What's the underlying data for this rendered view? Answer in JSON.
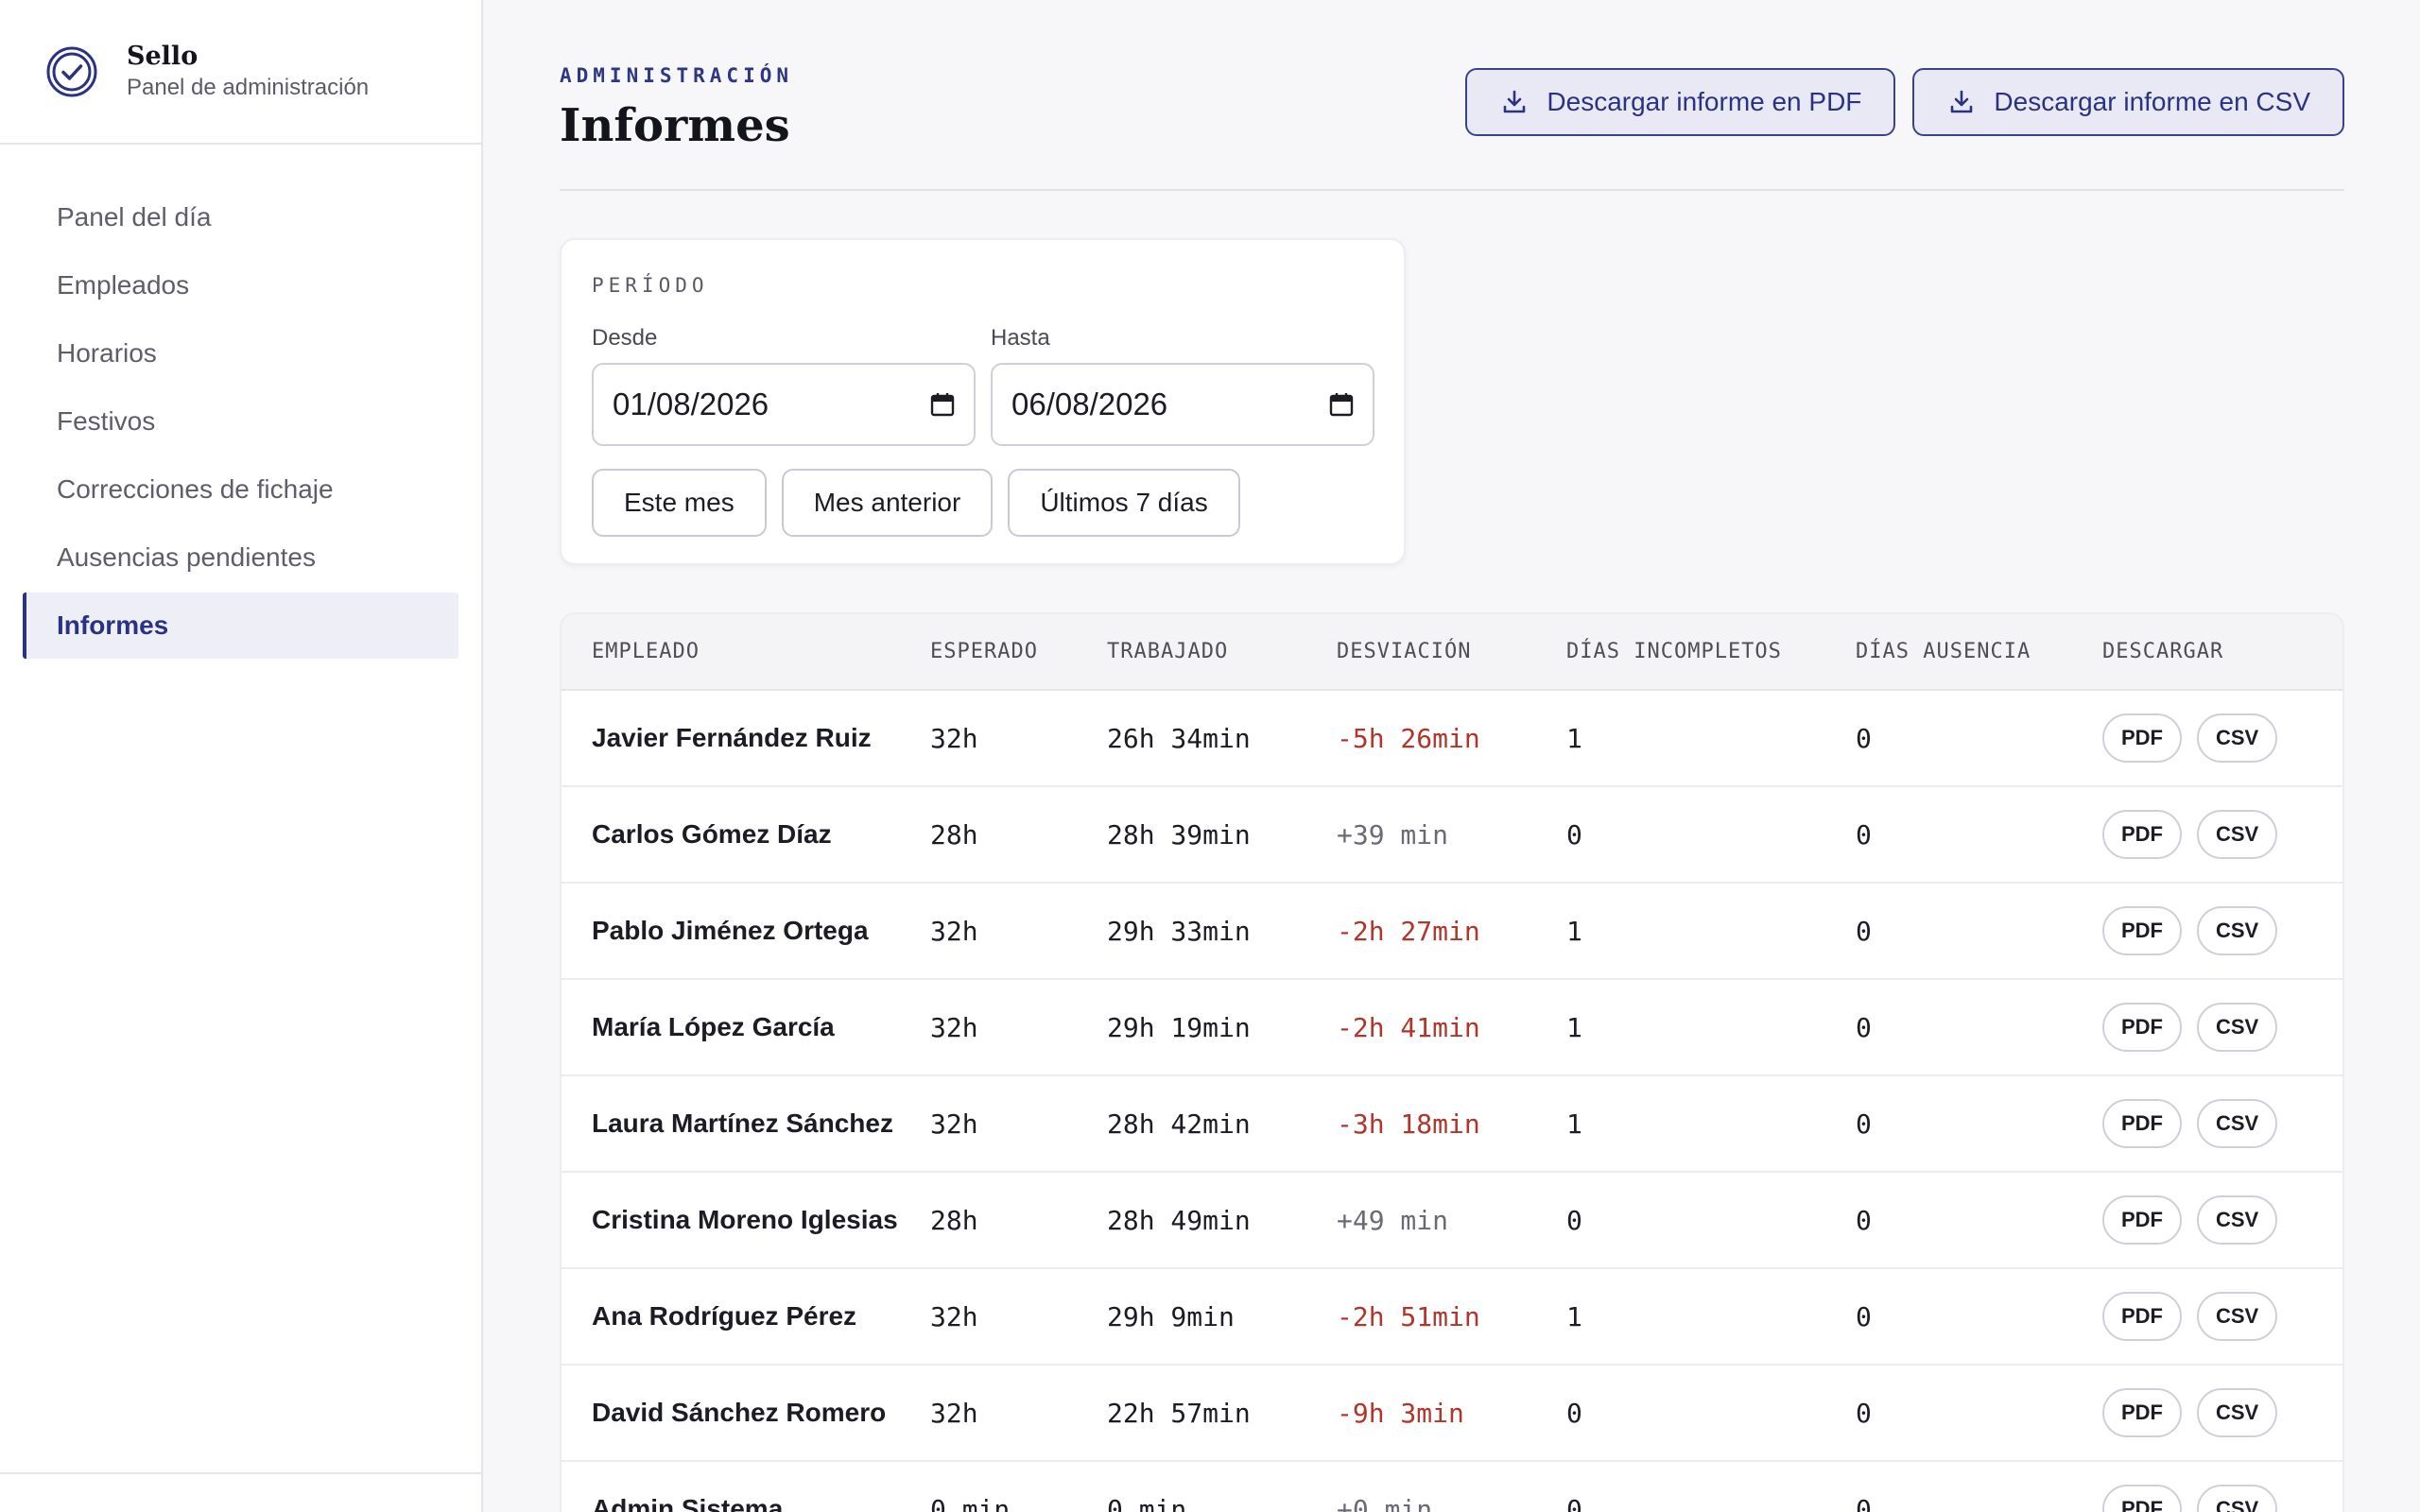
{
  "brand": {
    "name": "Sello",
    "subtitle": "Panel de administración"
  },
  "sidebar": {
    "items": [
      {
        "label": "Panel del día",
        "active": false
      },
      {
        "label": "Empleados",
        "active": false
      },
      {
        "label": "Horarios",
        "active": false
      },
      {
        "label": "Festivos",
        "active": false
      },
      {
        "label": "Correcciones de fichaje",
        "active": false
      },
      {
        "label": "Ausencias pendientes",
        "active": false
      },
      {
        "label": "Informes",
        "active": true
      }
    ]
  },
  "header": {
    "eyebrow": "ADMINISTRACIÓN",
    "title": "Informes",
    "pdf_button": "Descargar informe en PDF",
    "csv_button": "Descargar informe en CSV"
  },
  "period": {
    "eyebrow": "PERÍODO",
    "from_label": "Desde",
    "from_value": "01/08/2026",
    "to_label": "Hasta",
    "to_value": "06/08/2026",
    "quick": [
      "Este mes",
      "Mes anterior",
      "Últimos 7 días"
    ]
  },
  "table": {
    "headers": [
      "EMPLEADO",
      "ESPERADO",
      "TRABAJADO",
      "DESVIACIÓN",
      "DÍAS INCOMPLETOS",
      "DÍAS AUSENCIA",
      "DESCARGAR"
    ],
    "pdf_label": "PDF",
    "csv_label": "CSV",
    "rows": [
      {
        "employee": "Javier Fernández Ruiz",
        "expected": "32h",
        "worked": "26h 34min",
        "deviation": "-5h 26min",
        "negative": true,
        "incomplete": "1",
        "absence": "0"
      },
      {
        "employee": "Carlos Gómez Díaz",
        "expected": "28h",
        "worked": "28h 39min",
        "deviation": "+39 min",
        "negative": false,
        "incomplete": "0",
        "absence": "0"
      },
      {
        "employee": "Pablo Jiménez Ortega",
        "expected": "32h",
        "worked": "29h 33min",
        "deviation": "-2h 27min",
        "negative": true,
        "incomplete": "1",
        "absence": "0"
      },
      {
        "employee": "María López García",
        "expected": "32h",
        "worked": "29h 19min",
        "deviation": "-2h 41min",
        "negative": true,
        "incomplete": "1",
        "absence": "0"
      },
      {
        "employee": "Laura Martínez Sánchez",
        "expected": "32h",
        "worked": "28h 42min",
        "deviation": "-3h 18min",
        "negative": true,
        "incomplete": "1",
        "absence": "0"
      },
      {
        "employee": "Cristina Moreno Iglesias",
        "expected": "28h",
        "worked": "28h 49min",
        "deviation": "+49 min",
        "negative": false,
        "incomplete": "0",
        "absence": "0"
      },
      {
        "employee": "Ana Rodríguez Pérez",
        "expected": "32h",
        "worked": "29h 9min",
        "deviation": "-2h 51min",
        "negative": true,
        "incomplete": "1",
        "absence": "0"
      },
      {
        "employee": "David Sánchez Romero",
        "expected": "32h",
        "worked": "22h 57min",
        "deviation": "-9h 3min",
        "negative": true,
        "incomplete": "0",
        "absence": "0"
      },
      {
        "employee": "Admin Sistema",
        "expected": "0 min",
        "worked": "0 min",
        "deviation": "+0 min",
        "negative": false,
        "incomplete": "0",
        "absence": "0"
      }
    ]
  }
}
